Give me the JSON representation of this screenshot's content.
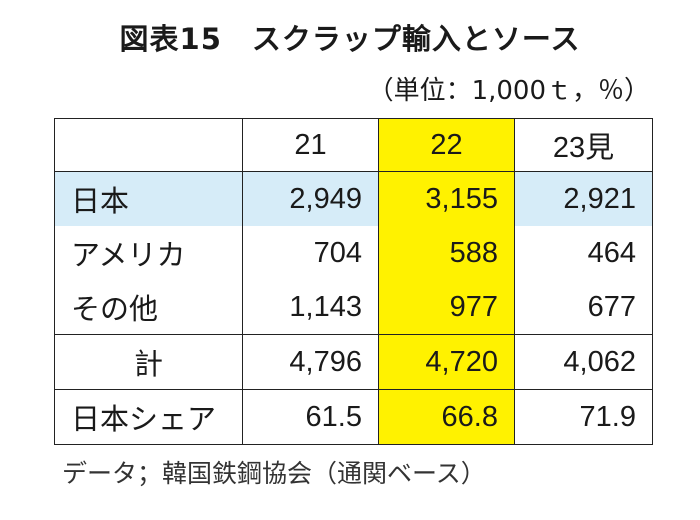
{
  "title": "図表15　スクラップ輸入とソース",
  "unit": "（単位：1,000ｔ，％）",
  "table": {
    "headers": [
      "",
      "21",
      "22",
      "23見"
    ],
    "rows": [
      {
        "label": "日本",
        "values": [
          "2,949",
          "3,155",
          "2,921"
        ]
      },
      {
        "label": "アメリカ",
        "values": [
          "704",
          "588",
          "464"
        ]
      },
      {
        "label": "その他",
        "values": [
          "1,143",
          "977",
          "677"
        ]
      },
      {
        "label": "計",
        "values": [
          "4,796",
          "4,720",
          "4,062"
        ]
      },
      {
        "label": "日本シェア",
        "values": [
          "61.5",
          "66.8",
          "71.9"
        ]
      }
    ]
  },
  "source": "データ；韓国鉄鋼協会（通関ベース）",
  "colors": {
    "highlight_column": "#fff200",
    "highlight_row": "#d6ecf8"
  }
}
